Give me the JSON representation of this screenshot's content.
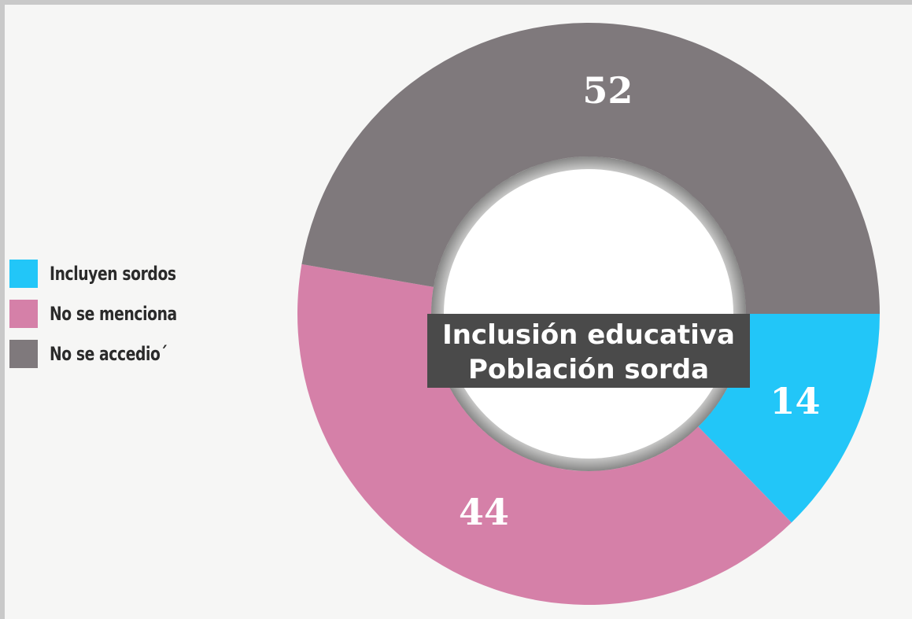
{
  "chart_data": {
    "type": "pie",
    "title_lines": [
      "Inclusión educativa",
      "Población sorda"
    ],
    "series": [
      {
        "name": "Incluyen sordos",
        "value": 14,
        "color": "#22c6f8"
      },
      {
        "name": "No se menciona",
        "value": 44,
        "color": "#d580a8"
      },
      {
        "name": "No se accedio´",
        "value": 52,
        "color": "#7f797c"
      }
    ],
    "legend": "left"
  }
}
